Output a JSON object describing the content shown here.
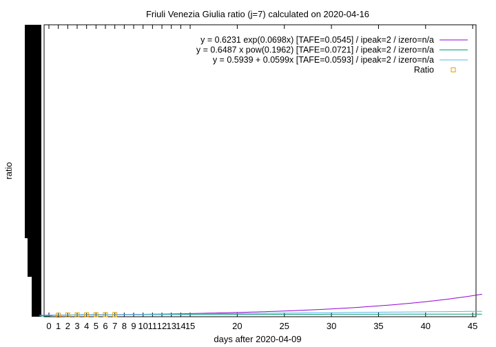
{
  "chart_data": {
    "type": "line",
    "title": "Friuli Venezia Giulia ratio (j=7) calculated on 2020-04-16",
    "xlabel": "days after 2020-04-09",
    "ylabel": "ratio",
    "xlim": [
      -1,
      46
    ],
    "x_ticks": [
      0,
      1,
      2,
      3,
      4,
      5,
      6,
      7,
      8,
      9,
      10,
      11,
      12,
      13,
      14,
      15,
      20,
      25,
      30,
      35,
      40,
      45
    ],
    "grid": false,
    "legend_position": "top-right",
    "series": [
      {
        "name": "y = 0.6231 exp(0.0698x)  [TAFE=0.0545] / ipeak=2 / izero=n/a",
        "kind": "line",
        "color": "#9400d3",
        "model": "exp",
        "a": 0.6231,
        "b": 0.0698
      },
      {
        "name": "y = 0.6487 x pow(0.1962)  [TAFE=0.0721] / ipeak=2 / izero=n/a",
        "kind": "line",
        "color": "#009e73",
        "model": "pow",
        "a": 0.6487,
        "b": 0.1962
      },
      {
        "name": "y = 0.5939 + 0.0599x  [TAFE=0.0593] / ipeak=2 / izero=n/a",
        "kind": "line",
        "color": "#56b4e9",
        "model": "linear",
        "a": 0.5939,
        "b": 0.0599
      },
      {
        "name": "Ratio",
        "kind": "points",
        "color": "#e69f00",
        "x": [
          1,
          2,
          3,
          4,
          5,
          6,
          7
        ],
        "y": [
          0.61,
          0.75,
          0.83,
          0.85,
          0.95,
          1.0,
          1.06
        ]
      }
    ]
  }
}
